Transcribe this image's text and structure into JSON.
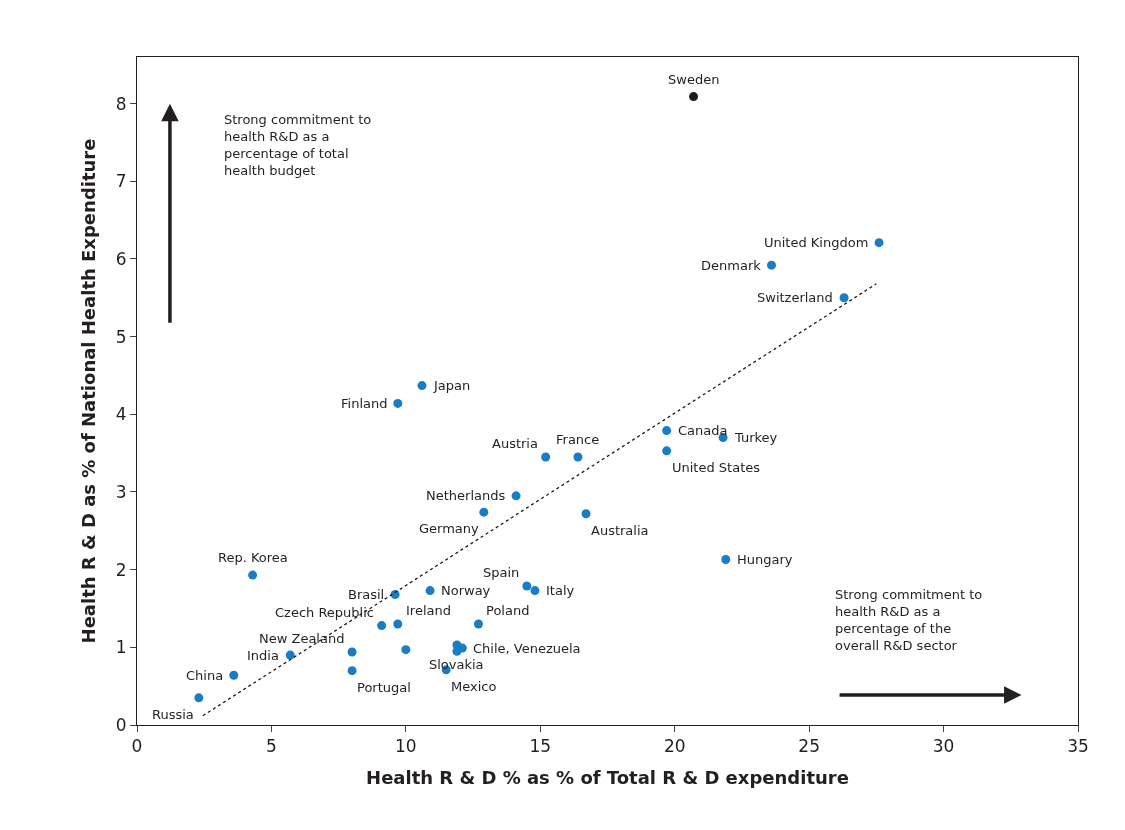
{
  "chart_data": {
    "type": "scatter",
    "xlabel": "Health R & D % as % of Total R & D expenditure",
    "ylabel": "Health R & D as % of National Health Expenditure",
    "series": [
      {
        "marker": "circle",
        "colors": [
          "#1a1a1a",
          "#1a7dc4",
          "#1a7dc4",
          "#1a7dc4",
          "#1a7dc4",
          "#1a7dc4",
          "#1a7dc4",
          "#1a7dc4",
          "#1a7dc4",
          "#1a7dc4",
          "#1a7dc4",
          "#1a7dc4",
          "#1a7dc4",
          "#1a7dc4",
          "#1a7dc4",
          "#1a7dc4",
          "#1a7dc4",
          "#1a7dc4",
          "#1a7dc4",
          "#1a7dc4",
          "#1a7dc4",
          "#1a7dc4",
          "#1a7dc4",
          "#1a7dc4",
          "#1a7dc4",
          "#1a7dc4",
          "#1a7dc4",
          "#1a7dc4",
          "#1a7dc4",
          "#1a7dc4",
          "#1a7dc4",
          "#1a7dc4",
          "#1a7dc4"
        ],
        "x": [
          20.7,
          27.6,
          23.6,
          26.3,
          10.6,
          9.7,
          19.7,
          21.8,
          19.7,
          15.2,
          16.4,
          14.1,
          12.9,
          16.7,
          21.9,
          4.3,
          14.5,
          14.8,
          10.9,
          9.6,
          12.7,
          9.7,
          9.1,
          8.0,
          8.0,
          5.7,
          3.6,
          2.3,
          12.1,
          11.9,
          11.5,
          10.0,
          11.9
        ],
        "values": [
          8.09,
          6.21,
          5.92,
          5.5,
          4.37,
          4.14,
          3.79,
          3.7,
          3.53,
          3.45,
          3.45,
          2.95,
          2.74,
          2.72,
          2.13,
          1.93,
          1.79,
          1.73,
          1.73,
          1.68,
          1.3,
          1.3,
          1.28,
          0.94,
          0.7,
          0.9,
          0.64,
          0.35,
          0.99,
          0.95,
          0.71,
          0.97,
          1.03
        ]
      },
      {
        "type": "line",
        "color": "#1a1a1a",
        "line_style": "dotted",
        "x": [
          2.45,
          27.5
        ],
        "values": [
          0.12,
          5.68
        ]
      }
    ],
    "annotations": [
      {
        "text": "Sweden",
        "x": 20.7,
        "y": 8.09
      },
      {
        "text": "United Kingdom",
        "x": 27.6,
        "y": 6.21
      },
      {
        "text": "Denmark",
        "x": 23.6,
        "y": 5.92
      },
      {
        "text": "Switzerland",
        "x": 26.3,
        "y": 5.5
      },
      {
        "text": "Japan",
        "x": 10.6,
        "y": 4.37
      },
      {
        "text": "Finland",
        "x": 9.7,
        "y": 4.14
      },
      {
        "text": "Canada",
        "x": 19.7,
        "y": 3.79
      },
      {
        "text": "Turkey",
        "x": 21.8,
        "y": 3.7
      },
      {
        "text": "United States",
        "x": 19.7,
        "y": 3.53
      },
      {
        "text": "Austria",
        "x": 15.2,
        "y": 3.45
      },
      {
        "text": "France",
        "x": 16.4,
        "y": 3.45
      },
      {
        "text": "Netherlands",
        "x": 14.1,
        "y": 2.95
      },
      {
        "text": "Germany",
        "x": 12.9,
        "y": 2.74
      },
      {
        "text": "Australia",
        "x": 16.7,
        "y": 2.72
      },
      {
        "text": "Hungary",
        "x": 21.9,
        "y": 2.13
      },
      {
        "text": "Rep. Korea",
        "x": 4.3,
        "y": 1.93
      },
      {
        "text": "Spain",
        "x": 14.5,
        "y": 1.79
      },
      {
        "text": "Italy",
        "x": 14.8,
        "y": 1.73
      },
      {
        "text": "Norway",
        "x": 10.9,
        "y": 1.73
      },
      {
        "text": "Brasil",
        "x": 9.6,
        "y": 1.68
      },
      {
        "text": "Poland",
        "x": 12.7,
        "y": 1.3
      },
      {
        "text": "Ireland",
        "x": 9.7,
        "y": 1.3
      },
      {
        "text": "Czech Republic",
        "x": 9.1,
        "y": 1.28
      },
      {
        "text": "New Zealand",
        "x": 8.0,
        "y": 0.94
      },
      {
        "text": "Portugal",
        "x": 8.0,
        "y": 0.7
      },
      {
        "text": "India",
        "x": 5.7,
        "y": 0.9
      },
      {
        "text": "China",
        "x": 3.6,
        "y": 0.64
      },
      {
        "text": "Russia",
        "x": 2.3,
        "y": 0.35
      },
      {
        "text": "Chile, Venezuela",
        "x": 12.1,
        "y": 0.99
      },
      {
        "text": "Slovakia",
        "x": 11.9,
        "y": 0.95
      },
      {
        "text": "Mexico",
        "x": 11.5,
        "y": 0.71
      },
      "Strong commitment to health R&D as a percentage of total health budget",
      "Strong commitment to health R&D as a percentage of the overall R&D sector"
    ],
    "xlim": [
      0,
      35
    ],
    "xticks": [
      0,
      5,
      10,
      15,
      20,
      25,
      30,
      35
    ],
    "ylim": [
      0,
      8.6
    ],
    "yticks": [
      0,
      1,
      2,
      3,
      4,
      5,
      6,
      7,
      8
    ]
  }
}
